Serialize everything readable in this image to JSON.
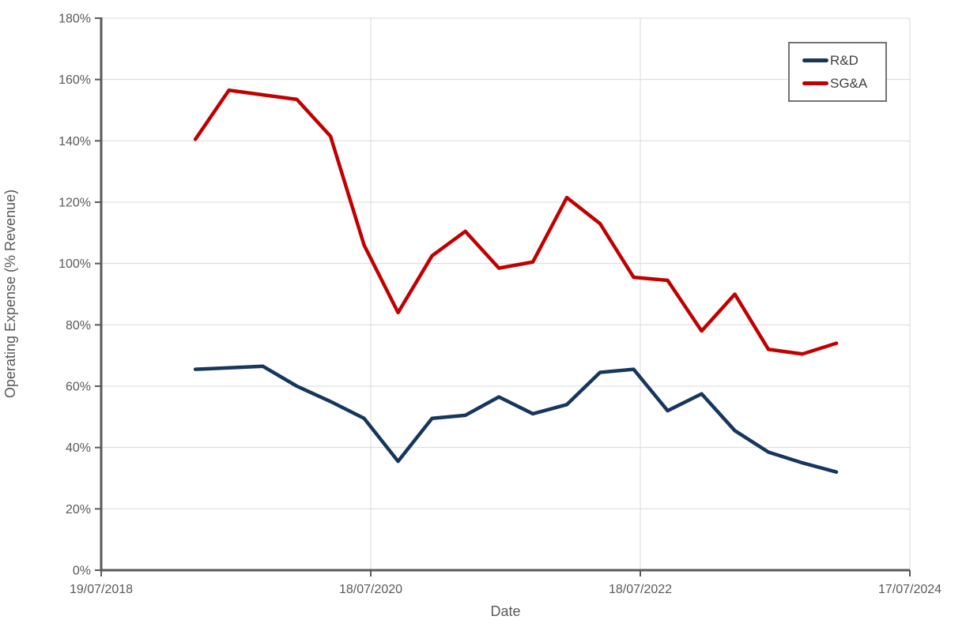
{
  "chart_data": {
    "type": "line",
    "title": "",
    "xlabel": "Date",
    "ylabel": "Operating Expense (% Revenue)",
    "ylim": [
      0,
      180
    ],
    "grid": true,
    "legend_position": "top-right",
    "colors": {
      "background": "#FFFFFF",
      "gridline": "#D9D9D9",
      "axis": "#595959",
      "tick_label": "#595959"
    },
    "y_ticks": [
      {
        "value": 0,
        "label": "0%"
      },
      {
        "value": 20,
        "label": "20%"
      },
      {
        "value": 40,
        "label": "40%"
      },
      {
        "value": 60,
        "label": "60%"
      },
      {
        "value": 80,
        "label": "80%"
      },
      {
        "value": 100,
        "label": "100%"
      },
      {
        "value": 120,
        "label": "120%"
      },
      {
        "value": 140,
        "label": "140%"
      },
      {
        "value": 160,
        "label": "160%"
      },
      {
        "value": 180,
        "label": "180%"
      }
    ],
    "x_axis_range": {
      "start": "2018-07-19",
      "end": "2024-07-17"
    },
    "x_ticks": [
      {
        "date": "2018-07-19",
        "label": "19/07/2018"
      },
      {
        "date": "2020-07-18",
        "label": "18/07/2020"
      },
      {
        "date": "2022-07-18",
        "label": "18/07/2022"
      },
      {
        "date": "2024-07-17",
        "label": "17/07/2024"
      }
    ],
    "x": [
      "2019-03-31",
      "2019-06-30",
      "2019-09-30",
      "2019-12-31",
      "2020-03-31",
      "2020-06-30",
      "2020-09-30",
      "2020-12-31",
      "2021-03-31",
      "2021-06-30",
      "2021-09-30",
      "2021-12-31",
      "2022-03-31",
      "2022-06-30",
      "2022-09-30",
      "2022-12-31",
      "2023-03-31",
      "2023-06-30",
      "2023-09-30",
      "2023-12-31"
    ],
    "series": [
      {
        "name": "R&D",
        "color": "#17365D",
        "values": [
          65.5,
          66,
          66.5,
          60,
          55,
          49.5,
          35.5,
          49.5,
          50.5,
          56.5,
          51,
          54,
          64.5,
          65.5,
          52,
          57.5,
          45.5,
          38.5,
          35,
          32
        ]
      },
      {
        "name": "SG&A",
        "color": "#C00000",
        "values": [
          140.5,
          156.5,
          155,
          153.5,
          141.5,
          106,
          84,
          102.5,
          110.5,
          98.5,
          100.5,
          121.5,
          113,
          95.5,
          94.5,
          78,
          90,
          72,
          70.5,
          74
        ]
      }
    ]
  }
}
